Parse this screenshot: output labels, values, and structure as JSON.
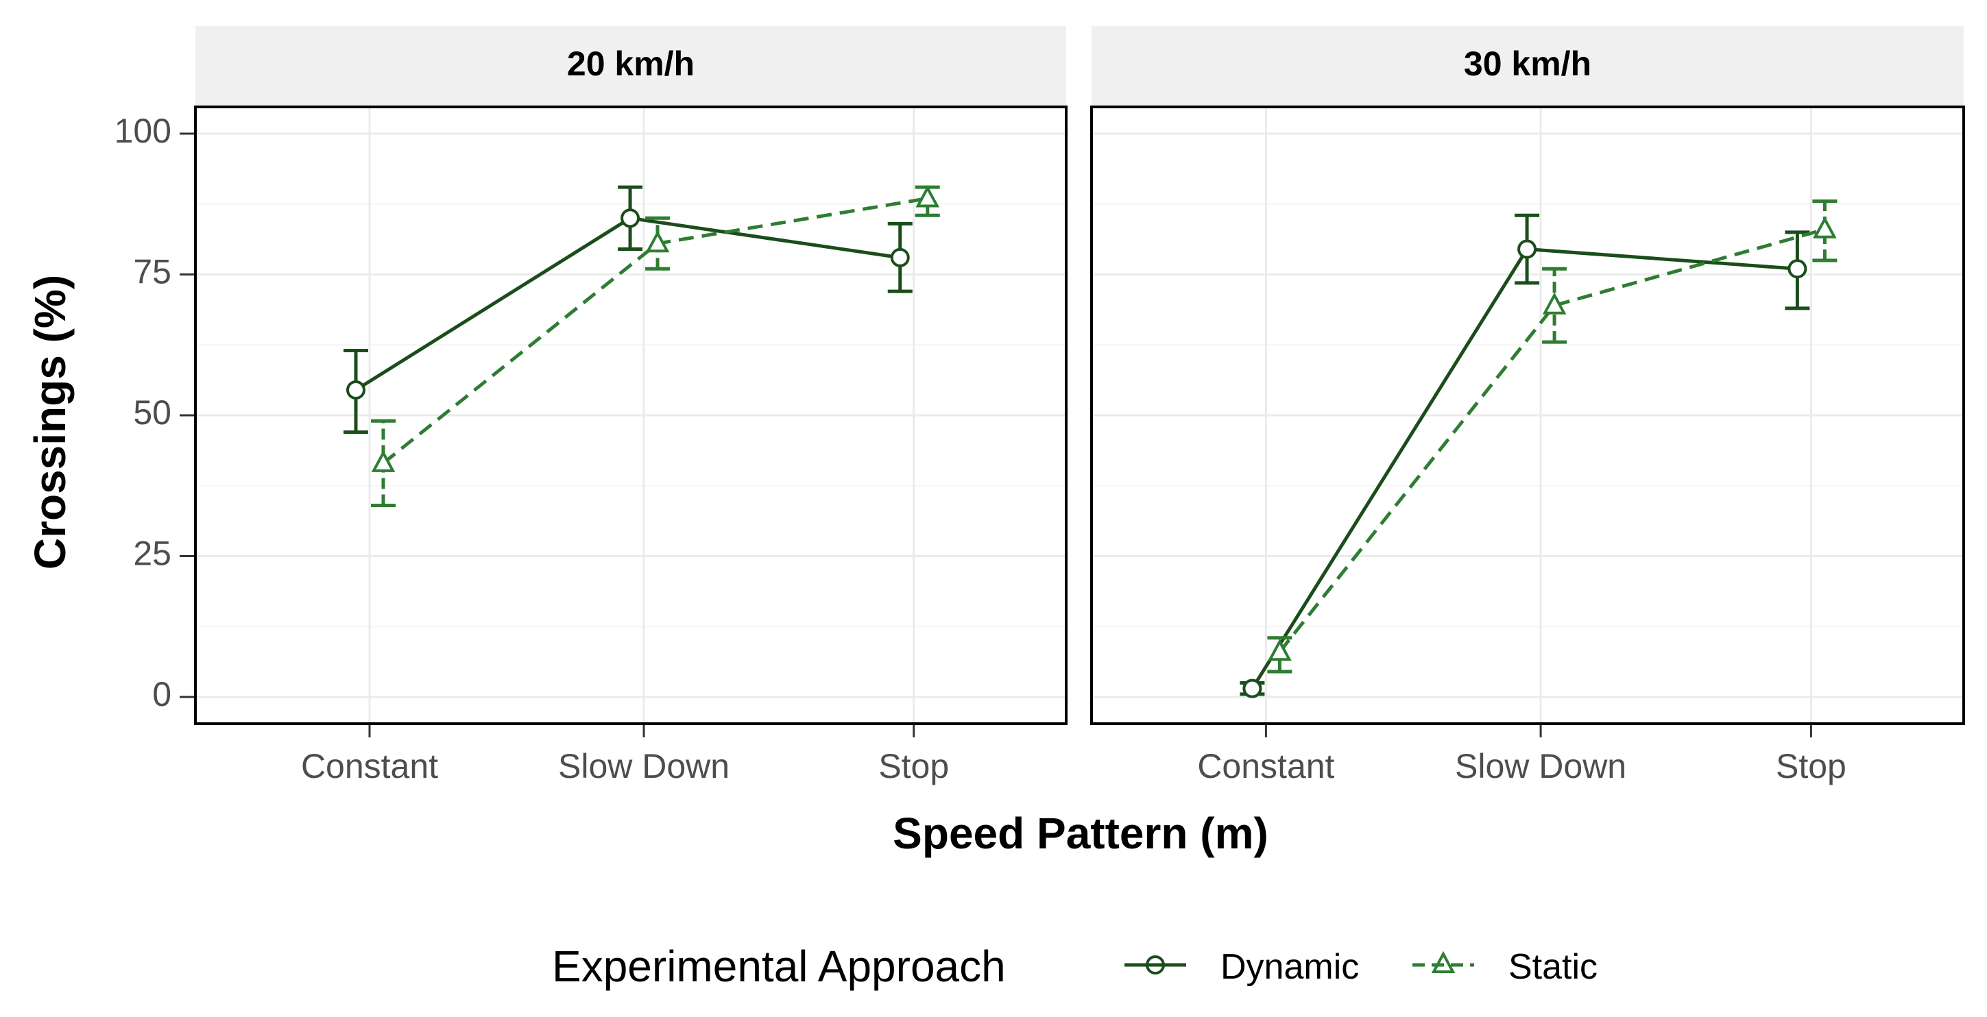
{
  "chart_data": {
    "type": "line",
    "categories": [
      "Constant",
      "Slow Down",
      "Stop"
    ],
    "ylabel": "Crossings (%)",
    "xlabel": "Speed Pattern (m)",
    "ylim": [
      0,
      100
    ],
    "yticks": [
      0,
      25,
      50,
      75,
      100
    ],
    "grid": true,
    "legend": {
      "title": "Experimental Approach",
      "position": "bottom"
    },
    "series_styles": {
      "Dynamic": {
        "color": "#1b4d1b",
        "marker": "circle",
        "dash": "solid"
      },
      "Static": {
        "color": "#2e7d32",
        "marker": "triangle",
        "dash": "dashed"
      }
    },
    "panels": [
      {
        "title": "20 km/h",
        "series": [
          {
            "name": "Dynamic",
            "values": [
              54.5,
              85.0,
              78.0
            ],
            "lower": [
              47.0,
              79.5,
              72.0
            ],
            "upper": [
              61.5,
              90.5,
              84.0
            ]
          },
          {
            "name": "Static",
            "values": [
              41.5,
              80.5,
              88.5
            ],
            "lower": [
              34.0,
              76.0,
              85.5
            ],
            "upper": [
              49.0,
              85.0,
              90.5
            ]
          }
        ]
      },
      {
        "title": "30 km/h",
        "series": [
          {
            "name": "Dynamic",
            "values": [
              1.5,
              79.5,
              76.0
            ],
            "lower": [
              0.5,
              73.5,
              69.0
            ],
            "upper": [
              2.5,
              85.5,
              82.5
            ]
          },
          {
            "name": "Static",
            "values": [
              8.0,
              69.5,
              83.0
            ],
            "lower": [
              4.5,
              63.0,
              77.5
            ],
            "upper": [
              10.5,
              76.0,
              88.0
            ]
          }
        ]
      }
    ]
  }
}
